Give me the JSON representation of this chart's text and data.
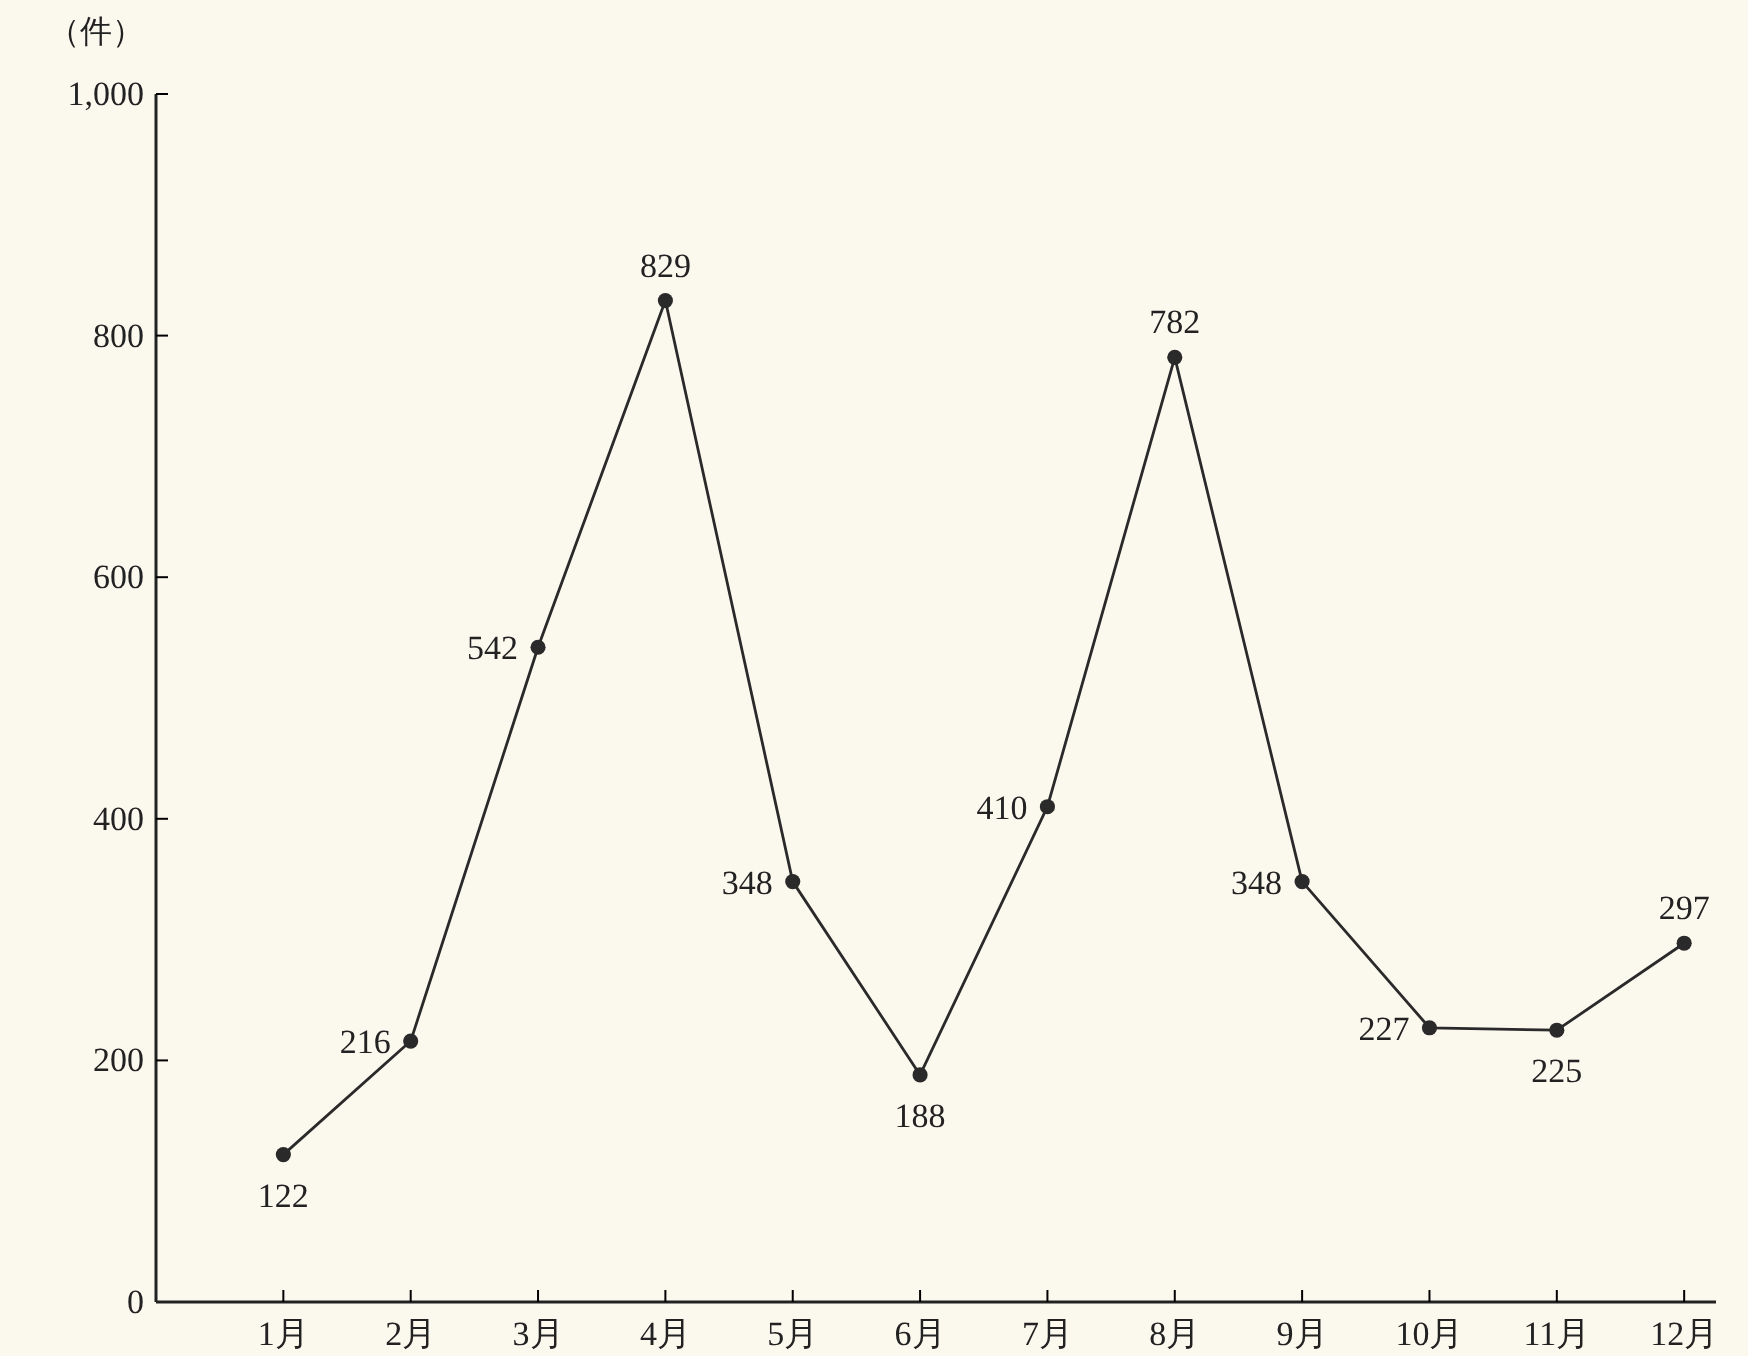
{
  "chart_data": {
    "type": "line",
    "ylabel": "（件）",
    "categories": [
      "1月",
      "2月",
      "3月",
      "4月",
      "5月",
      "6月",
      "7月",
      "8月",
      "9月",
      "10月",
      "11月",
      "12月"
    ],
    "values": [
      122,
      216,
      542,
      829,
      348,
      188,
      410,
      782,
      348,
      227,
      225,
      297
    ],
    "color": "#2a2a2a",
    "marker": "circle",
    "line_style": "solid",
    "data_labels": true,
    "grid": false,
    "ylim": [
      0,
      1000
    ],
    "yticks": [
      0,
      200,
      400,
      600,
      800,
      {
        "value": 1000,
        "label": "1,000"
      }
    ]
  }
}
